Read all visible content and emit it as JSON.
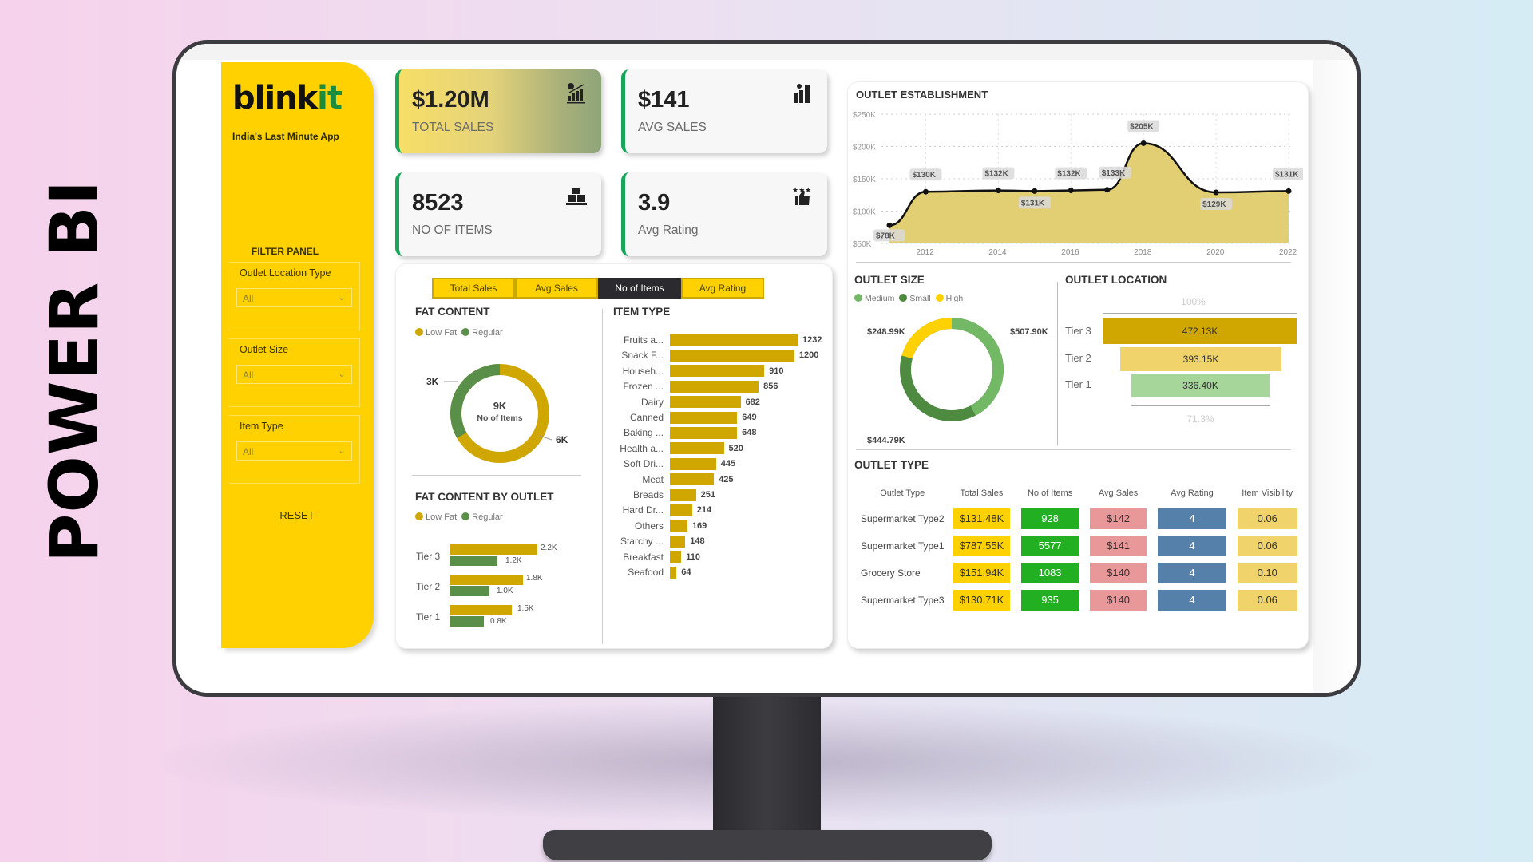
{
  "side_title": "POWER BI",
  "brand": {
    "name_part1": "blink",
    "name_part2": "it",
    "tagline": "India's Last Minute App"
  },
  "filters": {
    "title": "FILTER PANEL",
    "items": [
      {
        "label": "Outlet Location Type",
        "value": "All"
      },
      {
        "label": "Outlet Size",
        "value": "All"
      },
      {
        "label": "Item Type",
        "value": "All"
      }
    ],
    "reset_label": "RESET"
  },
  "kpis": [
    {
      "value": "$1.20M",
      "label": "TOTAL SALES",
      "icon": "sales-growth-icon"
    },
    {
      "value": "$141",
      "label": "AVG SALES",
      "icon": "bar-chart-icon"
    },
    {
      "value": "8523",
      "label": "NO OF ITEMS",
      "icon": "boxes-icon"
    },
    {
      "value": "3.9",
      "label": "Avg Rating",
      "icon": "thumbs-up-stars-icon"
    }
  ],
  "metric_tabs": [
    {
      "label": "Total Sales",
      "active": false
    },
    {
      "label": "Avg Sales",
      "active": false
    },
    {
      "label": "No of Items",
      "active": true
    },
    {
      "label": "Avg Rating",
      "active": false
    }
  ],
  "colors": {
    "yellow": "#ffd100",
    "gold": "#cfa700",
    "green": "#5a8f4a",
    "light_green": "#72b865",
    "accent": "#17a65a"
  },
  "chart_data": [
    {
      "type": "area",
      "title": "OUTLET ESTABLISHMENT",
      "x": [
        2011,
        2012,
        2014,
        2015,
        2016,
        2017,
        2018,
        2020,
        2022
      ],
      "values": [
        78,
        130,
        132,
        131,
        132,
        133,
        205,
        129,
        131
      ],
      "labels": [
        "$78K",
        "$130K",
        "$132K",
        "$131K",
        "$132K",
        "$133K",
        "$205K",
        "$129K",
        "$131K"
      ],
      "xticks": [
        "2012",
        "2014",
        "2016",
        "2018",
        "2020",
        "2022"
      ],
      "yticks": [
        "$250K",
        "$200K",
        "$150K",
        "$100K",
        "$50K"
      ],
      "ylim": [
        50,
        250
      ],
      "grid": true
    },
    {
      "type": "pie",
      "title": "FAT CONTENT",
      "categories": [
        "Low Fat",
        "Regular"
      ],
      "values": [
        6,
        3
      ],
      "labels": [
        "6K",
        "3K"
      ],
      "center_value": "9K",
      "center_label": "No of Items"
    },
    {
      "type": "bar",
      "title": "ITEM TYPE",
      "categories": [
        "Fruits a...",
        "Snack F...",
        "Househ...",
        "Frozen ...",
        "Dairy",
        "Canned",
        "Baking ...",
        "Health a...",
        "Soft Dri...",
        "Meat",
        "Breads",
        "Hard Dr...",
        "Others",
        "Starchy ...",
        "Breakfast",
        "Seafood"
      ],
      "values": [
        1232,
        1200,
        910,
        856,
        682,
        649,
        648,
        520,
        445,
        425,
        251,
        214,
        169,
        148,
        110,
        64
      ]
    },
    {
      "type": "bar",
      "title": "FAT CONTENT BY OUTLET",
      "categories": [
        "Tier 3",
        "Tier 2",
        "Tier 1"
      ],
      "series": [
        {
          "name": "Low Fat",
          "values": [
            2.2,
            1.8,
            1.5
          ],
          "labels": [
            "2.2K",
            "1.8K",
            "1.5K"
          ]
        },
        {
          "name": "Regular",
          "values": [
            1.2,
            1.0,
            0.8
          ],
          "labels": [
            "1.2K",
            "1.0K",
            "0.8K"
          ]
        }
      ]
    },
    {
      "type": "pie",
      "title": "OUTLET SIZE",
      "categories": [
        "Medium",
        "Small",
        "High"
      ],
      "values": [
        507.9,
        444.79,
        248.99
      ],
      "labels": [
        "$507.90K",
        "$444.79K",
        "$248.99K"
      ]
    },
    {
      "type": "bar",
      "title": "OUTLET LOCATION",
      "categories": [
        "Tier 3",
        "Tier 2",
        "Tier 1"
      ],
      "values": [
        472.13,
        393.15,
        336.4
      ],
      "labels": [
        "472.13K",
        "393.15K",
        "336.40K"
      ],
      "top_annotation": "100%",
      "bottom_annotation": "71.3%"
    },
    {
      "type": "table",
      "title": "OUTLET TYPE",
      "columns": [
        "Outlet Type",
        "Total Sales",
        "No of Items",
        "Avg Sales",
        "Avg Rating",
        "Item Visibility"
      ],
      "rows": [
        [
          "Supermarket Type2",
          "$131.48K",
          "928",
          "$142",
          "4",
          "0.06"
        ],
        [
          "Supermarket Type1",
          "$787.55K",
          "5577",
          "$141",
          "4",
          "0.06"
        ],
        [
          "Grocery Store",
          "$151.94K",
          "1083",
          "$140",
          "4",
          "0.10"
        ],
        [
          "Supermarket Type3",
          "$130.71K",
          "935",
          "$140",
          "4",
          "0.06"
        ]
      ]
    }
  ]
}
